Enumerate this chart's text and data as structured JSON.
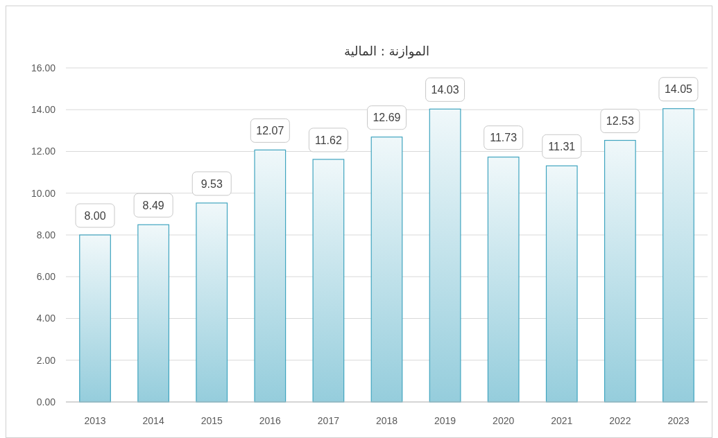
{
  "chart_data": {
    "type": "bar",
    "title": "الموازنة : المالية",
    "categories": [
      "2013",
      "2014",
      "2015",
      "2016",
      "2017",
      "2018",
      "2019",
      "2020",
      "2021",
      "2022",
      "2023"
    ],
    "values": [
      8.0,
      8.49,
      9.53,
      12.07,
      11.62,
      12.69,
      14.03,
      11.73,
      11.31,
      12.53,
      14.05
    ],
    "color": "#3fa4bf",
    "ylim": [
      0,
      16
    ],
    "yticks": [
      {
        "value": 0,
        "label": "0.00"
      },
      {
        "value": 2,
        "label": "2.00"
      },
      {
        "value": 4,
        "label": "4.00"
      },
      {
        "value": 6,
        "label": "6.00"
      },
      {
        "value": 8,
        "label": "8.00"
      },
      {
        "value": 10,
        "label": "10.00"
      },
      {
        "value": 12,
        "label": "12.00"
      },
      {
        "value": 14,
        "label": "14.00"
      },
      {
        "value": 16,
        "label": "16.00"
      }
    ],
    "grid": "y",
    "value_labels": [
      "8.00",
      "8.49",
      "9.53",
      "12.07",
      "11.62",
      "12.69",
      "14.03",
      "11.73",
      "11.31",
      "12.53",
      "14.05"
    ]
  }
}
